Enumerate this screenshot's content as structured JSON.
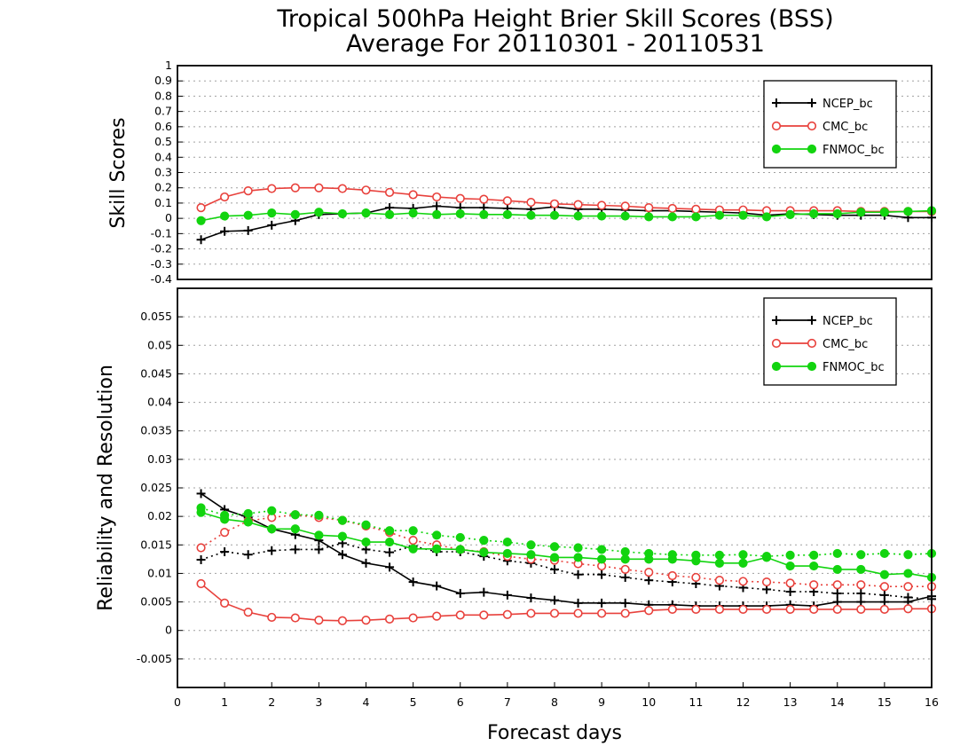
{
  "title": {
    "line1": "Tropical 500hPa Height Brier Skill Scores (BSS)",
    "line2": "Average For 20110301 - 20110531"
  },
  "colors": {
    "ncep": "#000000",
    "cmc": "#e8413c",
    "fnmoc": "#12d40f",
    "grid": "#a0a0a0"
  },
  "chart_data": [
    {
      "type": "line",
      "ylabel": "Skill Scores",
      "xlim": [
        0,
        16
      ],
      "ylim": [
        -0.4,
        1
      ],
      "y_ticks": [
        -0.4,
        -0.3,
        -0.2,
        -0.1,
        0,
        0.1,
        0.2,
        0.3,
        0.4,
        0.5,
        0.6,
        0.7,
        0.8,
        0.9,
        1
      ],
      "grid": true,
      "legend_position": "top-right",
      "x": [
        0.5,
        1,
        1.5,
        2,
        2.5,
        3,
        3.5,
        4,
        4.5,
        5,
        5.5,
        6,
        6.5,
        7,
        7.5,
        8,
        8.5,
        9,
        9.5,
        10,
        10.5,
        11,
        11.5,
        12,
        12.5,
        13,
        13.5,
        14,
        14.5,
        15,
        15.5,
        16
      ],
      "series": [
        {
          "name": "NCEP_bc",
          "marker": "plus",
          "color": "#000000",
          "values": [
            -0.14,
            -0.085,
            -0.08,
            -0.045,
            -0.015,
            0.025,
            0.03,
            0.035,
            0.07,
            0.065,
            0.08,
            0.07,
            0.07,
            0.065,
            0.06,
            0.075,
            0.06,
            0.06,
            0.055,
            0.05,
            0.05,
            0.045,
            0.04,
            0.035,
            0.02,
            0.03,
            0.025,
            0.02,
            0.02,
            0.02,
            0.005,
            0.005
          ]
        },
        {
          "name": "CMC_bc",
          "marker": "open-circle",
          "color": "#e8413c",
          "values": [
            0.07,
            0.14,
            0.18,
            0.195,
            0.2,
            0.2,
            0.195,
            0.185,
            0.17,
            0.155,
            0.14,
            0.13,
            0.125,
            0.115,
            0.105,
            0.095,
            0.09,
            0.085,
            0.08,
            0.07,
            0.065,
            0.06,
            0.055,
            0.055,
            0.05,
            0.05,
            0.05,
            0.05,
            0.045,
            0.045,
            0.045,
            0.045
          ]
        },
        {
          "name": "FNMOC_bc",
          "marker": "filled-circle",
          "color": "#12d40f",
          "values": [
            -0.015,
            0.015,
            0.02,
            0.035,
            0.025,
            0.04,
            0.03,
            0.035,
            0.025,
            0.035,
            0.025,
            0.03,
            0.025,
            0.025,
            0.02,
            0.02,
            0.015,
            0.015,
            0.015,
            0.01,
            0.01,
            0.01,
            0.02,
            0.02,
            0.01,
            0.025,
            0.03,
            0.03,
            0.04,
            0.04,
            0.045,
            0.05
          ]
        }
      ]
    },
    {
      "type": "line",
      "xlabel": "Forecast days",
      "ylabel": "Reliability and Resolution",
      "xlim": [
        0,
        16
      ],
      "ylim": [
        -0.01,
        0.06
      ],
      "x_ticks": [
        0,
        1,
        2,
        3,
        4,
        5,
        6,
        7,
        8,
        9,
        10,
        11,
        12,
        13,
        14,
        15,
        16
      ],
      "y_ticks": [
        -0.005,
        0,
        0.005,
        0.01,
        0.015,
        0.02,
        0.025,
        0.03,
        0.035,
        0.04,
        0.045,
        0.05,
        0.055
      ],
      "grid": true,
      "legend_position": "top-right",
      "x": [
        0.5,
        1,
        1.5,
        2,
        2.5,
        3,
        3.5,
        4,
        4.5,
        5,
        5.5,
        6,
        6.5,
        7,
        7.5,
        8,
        8.5,
        9,
        9.5,
        10,
        10.5,
        11,
        11.5,
        12,
        12.5,
        13,
        13.5,
        14,
        14.5,
        15,
        15.5,
        16
      ],
      "legend": [
        {
          "name": "NCEP_bc",
          "marker": "plus",
          "color": "#000000"
        },
        {
          "name": "CMC_bc",
          "marker": "open-circle",
          "color": "#e8413c"
        },
        {
          "name": "FNMOC_bc",
          "marker": "filled-circle",
          "color": "#12d40f"
        }
      ],
      "series": [
        {
          "name": "NCEP_bc reliability",
          "style": "solid",
          "marker": "plus",
          "color": "#000000",
          "values": [
            0.024,
            0.0212,
            0.0198,
            0.0178,
            0.0168,
            0.0158,
            0.0133,
            0.0118,
            0.0111,
            0.0085,
            0.0078,
            0.0065,
            0.0067,
            0.0062,
            0.0057,
            0.0053,
            0.0048,
            0.0048,
            0.0048,
            0.0045,
            0.0045,
            0.0043,
            0.0043,
            0.0043,
            0.0043,
            0.0045,
            0.0043,
            0.005,
            0.005,
            0.005,
            0.005,
            0.006
          ]
        },
        {
          "name": "NCEP_bc resolution",
          "style": "dotted",
          "marker": "plus",
          "color": "#000000",
          "values": [
            0.0124,
            0.0138,
            0.0133,
            0.014,
            0.0142,
            0.0142,
            0.0153,
            0.0142,
            0.0137,
            0.0148,
            0.0138,
            0.0138,
            0.013,
            0.0122,
            0.0118,
            0.0107,
            0.0098,
            0.0098,
            0.0093,
            0.0088,
            0.0085,
            0.0082,
            0.0078,
            0.0075,
            0.0072,
            0.0068,
            0.0068,
            0.0065,
            0.0065,
            0.0062,
            0.0058,
            0.0055
          ]
        },
        {
          "name": "CMC_bc reliability",
          "style": "solid",
          "marker": "open-circle",
          "color": "#e8413c",
          "values": [
            0.0082,
            0.0048,
            0.0032,
            0.0023,
            0.0022,
            0.0018,
            0.0017,
            0.0018,
            0.002,
            0.0022,
            0.0025,
            0.0027,
            0.0027,
            0.0028,
            0.003,
            0.003,
            0.003,
            0.003,
            0.003,
            0.0035,
            0.0037,
            0.0037,
            0.0037,
            0.0037,
            0.0037,
            0.0037,
            0.0037,
            0.0037,
            0.0037,
            0.0037,
            0.0038,
            0.0038
          ]
        },
        {
          "name": "CMC_bc resolution",
          "style": "dotted",
          "marker": "open-circle",
          "color": "#e8413c",
          "values": [
            0.0145,
            0.0172,
            0.0192,
            0.0198,
            0.0203,
            0.0198,
            0.0193,
            0.0183,
            0.0172,
            0.0158,
            0.015,
            0.0142,
            0.0138,
            0.013,
            0.0125,
            0.0123,
            0.0117,
            0.0113,
            0.0107,
            0.0102,
            0.0096,
            0.0093,
            0.0088,
            0.0086,
            0.0085,
            0.0083,
            0.008,
            0.008,
            0.008,
            0.0077,
            0.0077,
            0.0077
          ]
        },
        {
          "name": "FNMOC_bc reliability",
          "style": "solid",
          "marker": "filled-circle",
          "color": "#12d40f",
          "values": [
            0.0207,
            0.0195,
            0.019,
            0.0178,
            0.0178,
            0.0167,
            0.0165,
            0.0155,
            0.0155,
            0.0143,
            0.0143,
            0.0142,
            0.0137,
            0.0135,
            0.0133,
            0.0128,
            0.0128,
            0.0125,
            0.0125,
            0.0125,
            0.0125,
            0.0122,
            0.0118,
            0.0118,
            0.0128,
            0.0113,
            0.0113,
            0.0107,
            0.0107,
            0.0098,
            0.01,
            0.0093
          ]
        },
        {
          "name": "FNMOC_bc resolution",
          "style": "dotted",
          "marker": "filled-circle",
          "color": "#12d40f",
          "values": [
            0.0215,
            0.0202,
            0.0205,
            0.021,
            0.0203,
            0.0202,
            0.0193,
            0.0185,
            0.0175,
            0.0175,
            0.0167,
            0.0163,
            0.0158,
            0.0155,
            0.015,
            0.0147,
            0.0145,
            0.0142,
            0.0138,
            0.0135,
            0.0133,
            0.0132,
            0.0132,
            0.0133,
            0.013,
            0.0132,
            0.0132,
            0.0135,
            0.0133,
            0.0135,
            0.0133,
            0.0135
          ]
        }
      ]
    }
  ]
}
